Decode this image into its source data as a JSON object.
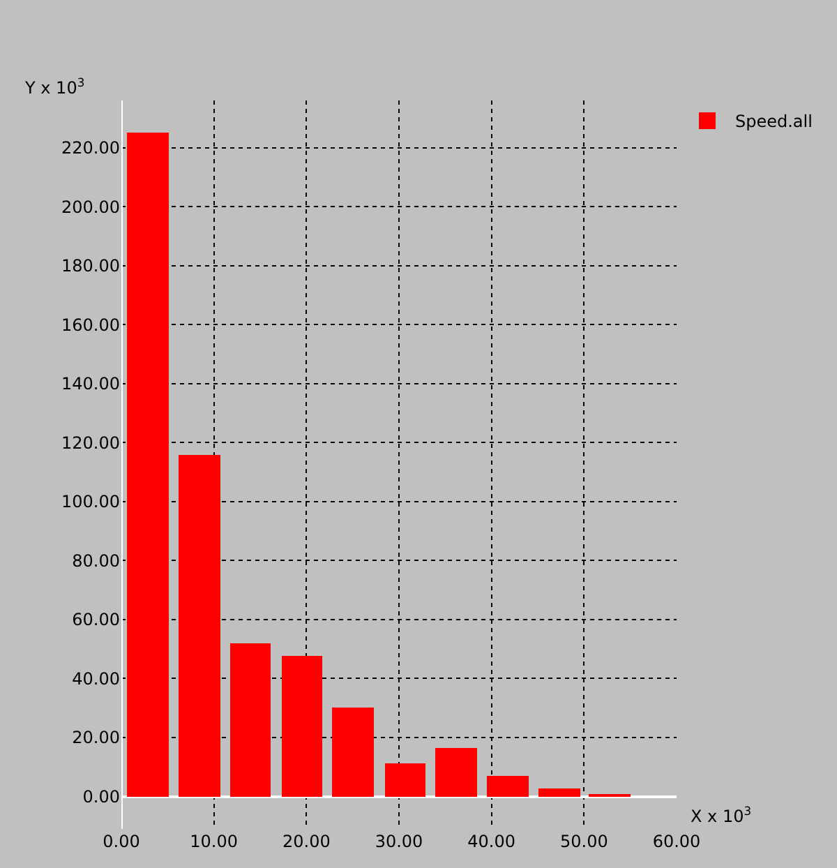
{
  "chart_data": {
    "type": "bar",
    "xlabel": "X x 10$^{3}$",
    "ylabel": "Y x 10$^{3}$",
    "x": [
      2.86,
      8.4,
      13.95,
      19.5,
      25.0,
      30.7,
      36.2,
      41.8,
      47.3,
      52.8
    ],
    "series": [
      {
        "name": "Speed.all",
        "color": "#ff0000",
        "values": [
          225,
          115.6,
          51.7,
          47.6,
          30.3,
          11.2,
          16.3,
          7.0,
          2.8,
          0.6
        ]
      }
    ],
    "xlim": [
      0,
      60
    ],
    "ylim": [
      -11,
      236
    ],
    "xticks": [
      {
        "value": 0,
        "label": "0.00"
      },
      {
        "value": 10,
        "label": "10.00"
      },
      {
        "value": 20,
        "label": "20.00"
      },
      {
        "value": 30,
        "label": "30.00"
      },
      {
        "value": 40,
        "label": "40.00"
      },
      {
        "value": 50,
        "label": "50.00"
      },
      {
        "value": 60,
        "label": "60.00"
      }
    ],
    "yticks": [
      {
        "value": 0,
        "label": "0.00"
      },
      {
        "value": 20,
        "label": "20.00"
      },
      {
        "value": 40,
        "label": "40.00"
      },
      {
        "value": 60,
        "label": "60.00"
      },
      {
        "value": 80,
        "label": "80.00"
      },
      {
        "value": 100,
        "label": "100.00"
      },
      {
        "value": 120,
        "label": "120.00"
      },
      {
        "value": 140,
        "label": "140.00"
      },
      {
        "value": 160,
        "label": "160.00"
      },
      {
        "value": 180,
        "label": "180.00"
      },
      {
        "value": 200,
        "label": "200.00"
      },
      {
        "value": 220,
        "label": "220.00"
      }
    ],
    "grid": true,
    "legend": "top right"
  }
}
